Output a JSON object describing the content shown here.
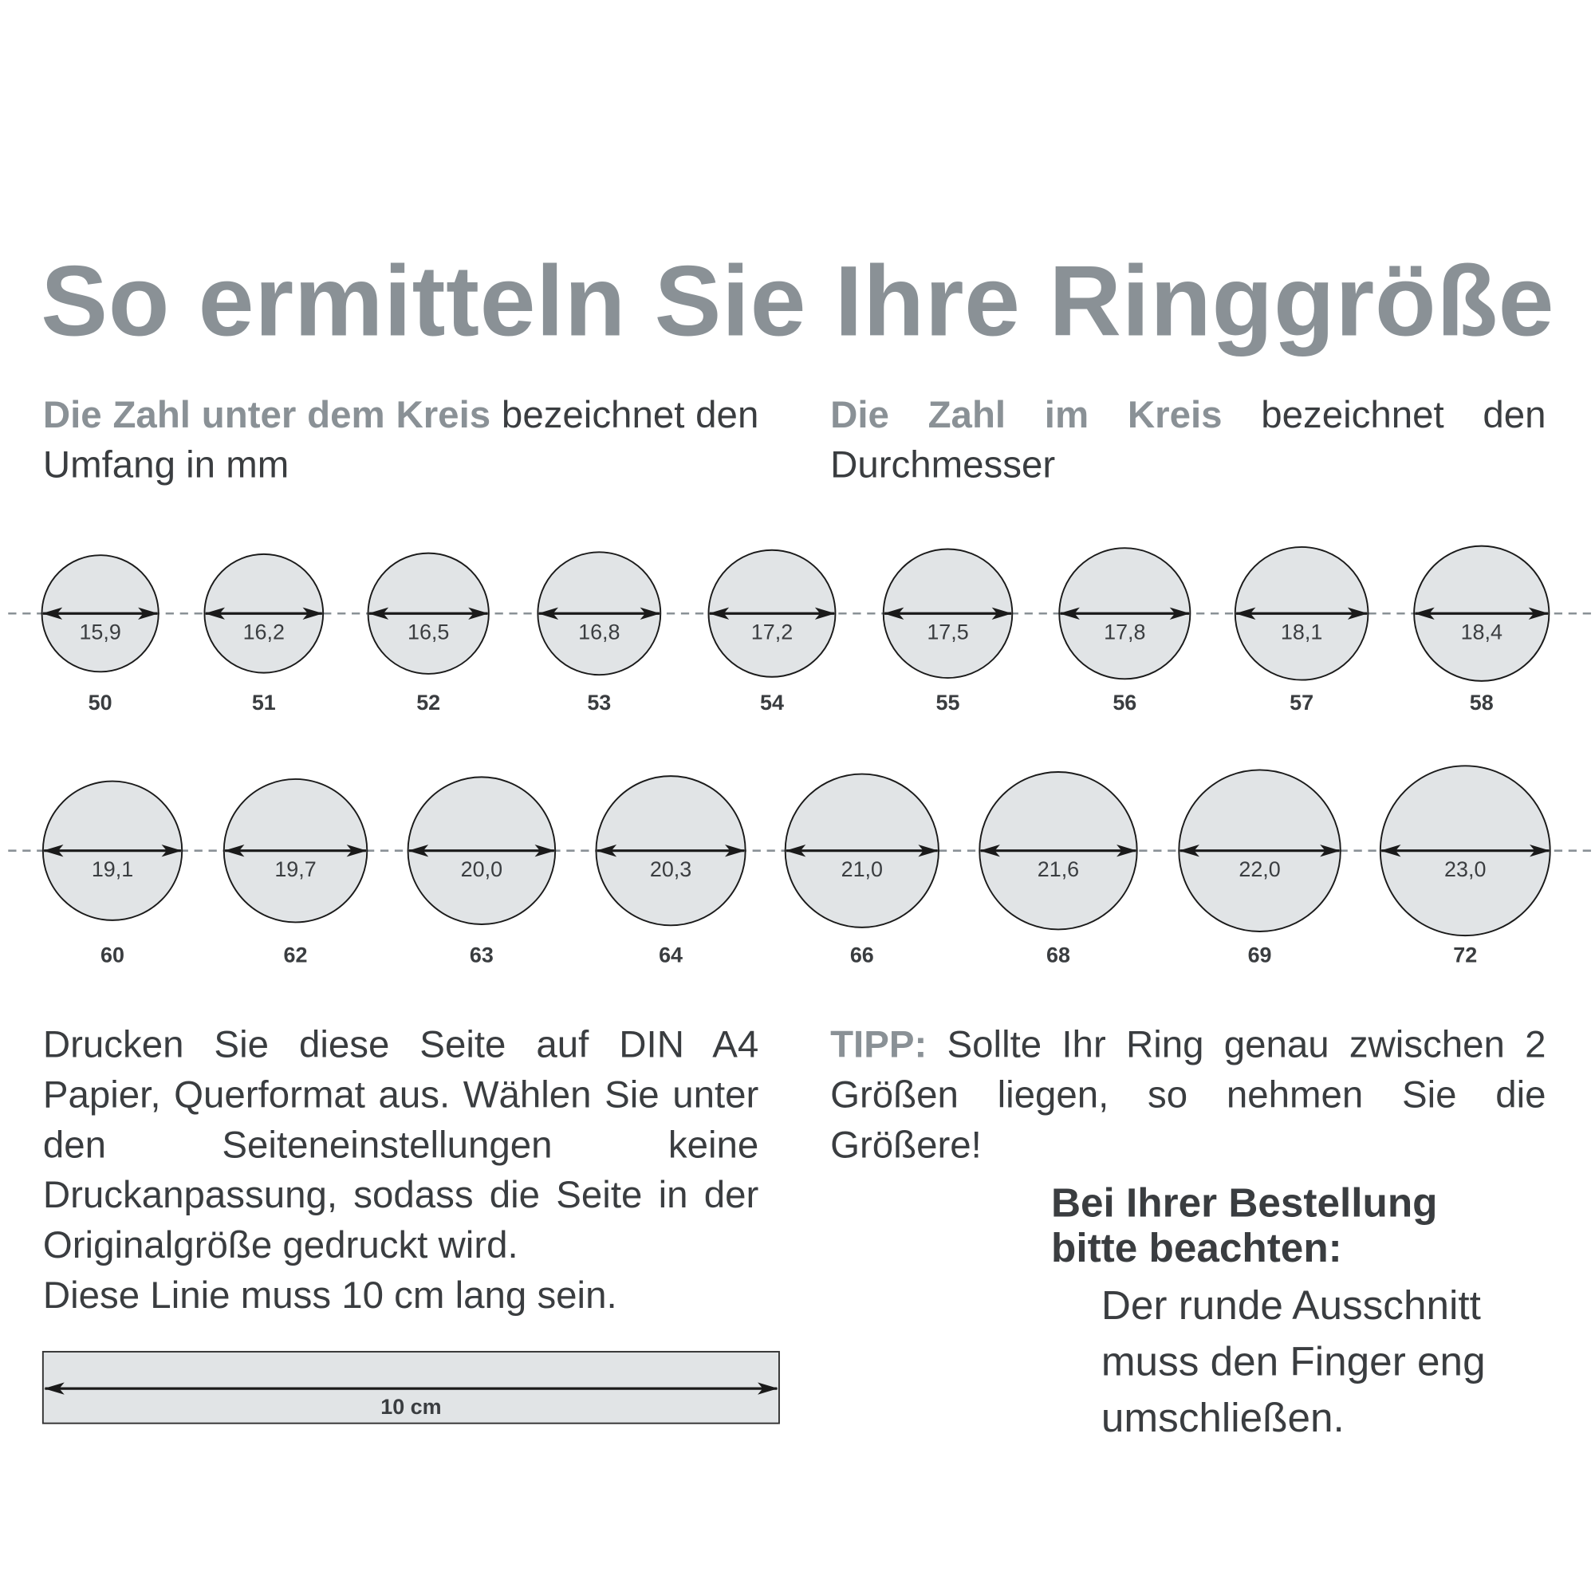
{
  "title": "So ermitteln Sie Ihre Ringgröße",
  "intro_left": {
    "highlight": "Die Zahl unter dem Kreis",
    "text": " bezeichnet den Umfang in mm"
  },
  "intro_right": {
    "highlight": "Die Zahl im Kreis",
    "text": " bezeichnet den Durchmesser"
  },
  "sizes_row1": [
    {
      "diameter": "15,9",
      "circumference": "50"
    },
    {
      "diameter": "16,2",
      "circumference": "51"
    },
    {
      "diameter": "16,5",
      "circumference": "52"
    },
    {
      "diameter": "16,8",
      "circumference": "53"
    },
    {
      "diameter": "17,2",
      "circumference": "54"
    },
    {
      "diameter": "17,5",
      "circumference": "55"
    },
    {
      "diameter": "17,8",
      "circumference": "56"
    },
    {
      "diameter": "18,1",
      "circumference": "57"
    },
    {
      "diameter": "18,4",
      "circumference": "58"
    }
  ],
  "sizes_row2": [
    {
      "diameter": "19,1",
      "circumference": "60"
    },
    {
      "diameter": "19,7",
      "circumference": "62"
    },
    {
      "diameter": "20,0",
      "circumference": "63"
    },
    {
      "diameter": "20,3",
      "circumference": "64"
    },
    {
      "diameter": "21,0",
      "circumference": "66"
    },
    {
      "diameter": "21,6",
      "circumference": "68"
    },
    {
      "diameter": "22,0",
      "circumference": "69"
    },
    {
      "diameter": "23,0",
      "circumference": "72"
    }
  ],
  "print_instructions": "Drucken Sie diese Seite auf DIN A4 Papier, Querformat aus. Wählen Sie unter den Seiteneinstellungen keine Druckanpassung, sodass die Seite in der Originalgröße gedruckt wird.",
  "line_instruction": "Diese Linie muss 10 cm lang sein.",
  "ruler_label": "10 cm",
  "tip": {
    "label": "TIPP:",
    "text": " Sollte Ihr Ring genau zwischen 2 Größen liegen, so nehmen Sie die Größere!"
  },
  "order_note": {
    "heading_1": "Bei Ihrer Bestellung",
    "heading_2": "bitte beachten:",
    "lines": [
      "Der runde Ausschnitt",
      "muss den Finger eng",
      "umschließen."
    ]
  },
  "colors": {
    "accent_gray": "#8a9196",
    "text": "#3a3d40",
    "circle_fill": "#e1e4e6"
  }
}
